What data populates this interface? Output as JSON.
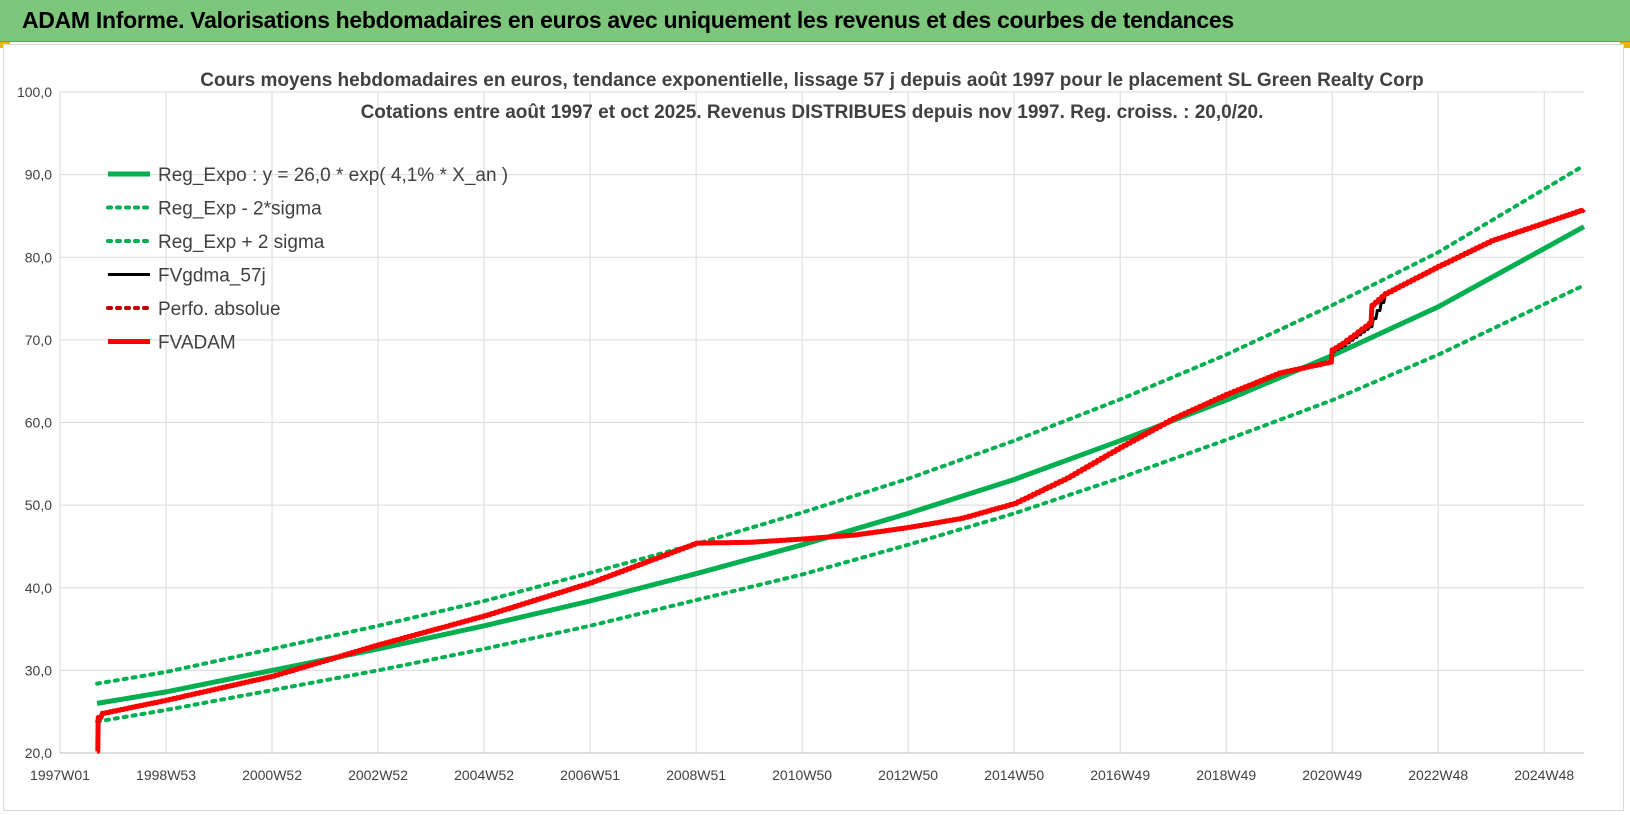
{
  "banner": {
    "title": "ADAM Informe. Valorisations hebdomadaires en euros avec uniquement les revenus et des courbes de tendances"
  },
  "colors": {
    "banner_bg": "#7dc77d",
    "trend_green": "#00b050",
    "fvgdma_black": "#000000",
    "fvadam_red": "#ff0000",
    "perfo_red": "#c00000",
    "accent_corner": "#f0b400"
  },
  "chart_data": {
    "type": "line",
    "title_line1": "Cours moyens hebdomadaires en euros, tendance exponentielle, lissage 57 j depuis août 1997 pour le placement SL Green Realty Corp",
    "title_line2": "Cotations entre août 1997 et oct 2025.  Revenus DISTRIBUES depuis nov 1997. Reg. croiss. : 20,0/20.",
    "xlabel": "",
    "ylabel": "",
    "ylim": [
      20,
      100
    ],
    "xlim": [
      1997.0,
      2025.75
    ],
    "grid": true,
    "legend_position": "top-left",
    "y_ticks": [
      "20,0",
      "30,0",
      "40,0",
      "50,0",
      "60,0",
      "70,0",
      "80,0",
      "90,0",
      "100,0"
    ],
    "x_ticks": [
      "1997W01",
      "1998W53",
      "2000W52",
      "2002W52",
      "2004W52",
      "2006W51",
      "2008W51",
      "2010W50",
      "2012W50",
      "2014W50",
      "2016W49",
      "2018W49",
      "2020W49",
      "2022W48",
      "2024W48"
    ],
    "x_tick_years": [
      1997.0,
      1999.0,
      2001.0,
      2003.0,
      2005.0,
      2007.0,
      2009.0,
      2011.0,
      2013.0,
      2015.0,
      2017.0,
      2019.0,
      2021.0,
      2023.0,
      2025.0
    ],
    "legend": [
      {
        "label": "Reg_Expo : y = 26,0 * exp( 4,1% *  X_an )",
        "style": "solid-thick",
        "color": "#00b050"
      },
      {
        "label": "Reg_Exp - 2*sigma",
        "style": "dotted",
        "color": "#00b050"
      },
      {
        "label": "Reg_Exp + 2 sigma",
        "style": "dotted",
        "color": "#00b050"
      },
      {
        "label": "FVgdma_57j",
        "style": "solid",
        "color": "#000000"
      },
      {
        "label": "Perfo. absolue",
        "style": "dotted",
        "color": "#c00000"
      },
      {
        "label": "FVADAM",
        "style": "solid-thick",
        "color": "#ff0000"
      }
    ],
    "series": [
      {
        "name": "Reg_Expo : y = 26,0 * exp( 4,1% *  X_an )",
        "x": [
          1997.7,
          1999,
          2001,
          2003,
          2005,
          2007,
          2009,
          2011,
          2013,
          2015,
          2017,
          2019,
          2021,
          2023,
          2025.75
        ],
        "y": [
          26.0,
          27.4,
          30.0,
          32.6,
          35.4,
          38.4,
          41.7,
          45.2,
          49.0,
          53.1,
          57.8,
          62.7,
          68.1,
          74.0,
          83.7
        ]
      },
      {
        "name": "Reg_Exp - 2*sigma",
        "x": [
          1997.7,
          1999,
          2001,
          2003,
          2005,
          2007,
          2009,
          2011,
          2013,
          2015,
          2017,
          2019,
          2021,
          2023,
          2025.75
        ],
        "y": [
          23.8,
          25.2,
          27.6,
          30.0,
          32.6,
          35.4,
          38.5,
          41.6,
          45.2,
          49.0,
          53.3,
          57.9,
          62.7,
          68.2,
          76.6
        ]
      },
      {
        "name": "Reg_Exp + 2 sigma",
        "x": [
          1997.7,
          1999,
          2001,
          2003,
          2005,
          2007,
          2009,
          2011,
          2013,
          2015,
          2017,
          2019,
          2021,
          2023,
          2025.75
        ],
        "y": [
          28.4,
          29.8,
          32.6,
          35.4,
          38.4,
          41.8,
          45.3,
          49.1,
          53.2,
          57.8,
          62.8,
          68.2,
          74.2,
          80.6,
          91.1
        ]
      },
      {
        "name": "FVgdma_57j",
        "x": [
          1997.7,
          1997.72,
          1997.8,
          1999,
          2001,
          2003,
          2005,
          2007,
          2009,
          2010,
          2011,
          2012,
          2013,
          2014,
          2015,
          2016,
          2017,
          2018,
          2019,
          2020,
          2020.95,
          2021.0,
          2021.2,
          2021.7,
          2022,
          2023,
          2024,
          2025.75
        ],
        "y": [
          20.2,
          24.3,
          24.8,
          26.4,
          29.3,
          33.1,
          36.6,
          40.6,
          45.4,
          45.5,
          45.9,
          46.4,
          47.3,
          48.4,
          50.2,
          53.3,
          57.0,
          60.5,
          63.4,
          66.0,
          67.3,
          68.6,
          69.3,
          71.6,
          75.5,
          78.9,
          82.0,
          85.8
        ]
      },
      {
        "name": "FVADAM",
        "x": [
          1997.7,
          1997.72,
          1997.8,
          1999,
          2001,
          2003,
          2005,
          2007,
          2009,
          2010,
          2011,
          2012,
          2013,
          2014,
          2015,
          2016,
          2017,
          2018,
          2019,
          2020,
          2020.95,
          2021.0,
          2021.2,
          2021.7,
          2021.75,
          2022,
          2023,
          2024,
          2025.75
        ],
        "y": [
          20.2,
          24.3,
          24.8,
          26.4,
          29.3,
          33.1,
          36.6,
          40.6,
          45.4,
          45.5,
          45.9,
          46.4,
          47.3,
          48.4,
          50.2,
          53.3,
          57.0,
          60.5,
          63.4,
          66.0,
          67.3,
          68.8,
          69.6,
          72.0,
          74.2,
          75.6,
          78.9,
          82.0,
          85.8
        ]
      }
    ]
  }
}
